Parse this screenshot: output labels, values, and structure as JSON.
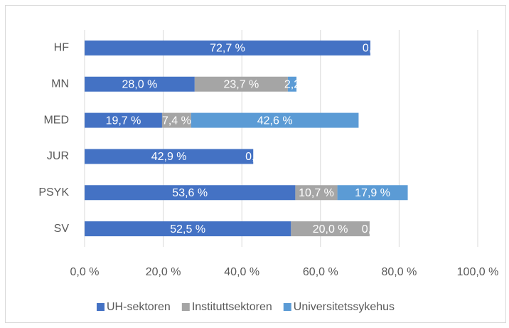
{
  "chart_data": {
    "type": "stacked_bar_horizontal",
    "categories": [
      "HF",
      "MN",
      "MED",
      "JUR",
      "PSYK",
      "SV"
    ],
    "series": [
      {
        "name": "UH-sektoren",
        "color": "#4472c4",
        "values": [
          72.7,
          28.0,
          19.7,
          42.9,
          53.6,
          52.5
        ],
        "value_labels": [
          "72,7 %",
          "28,0 %",
          "19,7 %",
          "42,9 %",
          "53,6 %",
          "52,5 %"
        ]
      },
      {
        "name": "Instituttsektoren",
        "color": "#a5a5a5",
        "values": [
          0.0,
          23.7,
          7.4,
          0.0,
          10.7,
          20.0
        ],
        "value_labels": [
          "0,0",
          "23,7 %",
          "7,4 %",
          "0,0",
          "10,7 %",
          "20,0 %"
        ]
      },
      {
        "name": "Universitetssykehus",
        "color": "#5b9bd5",
        "values": [
          null,
          2.2,
          42.6,
          null,
          17.9,
          0.0
        ],
        "value_labels": [
          null,
          "2,2",
          "42,6 %",
          null,
          "17,9 %",
          "0,0"
        ]
      }
    ],
    "xlim": [
      0,
      100
    ],
    "xticks": [
      {
        "value": 0,
        "label": "0,0 %"
      },
      {
        "value": 20,
        "label": "20,0 %"
      },
      {
        "value": 40,
        "label": "40,0 %"
      },
      {
        "value": 60,
        "label": "60,0 %"
      },
      {
        "value": 80,
        "label": "80,0 %"
      },
      {
        "value": 100,
        "label": "100,0 %"
      }
    ],
    "grid": true,
    "legend": "bottom"
  }
}
